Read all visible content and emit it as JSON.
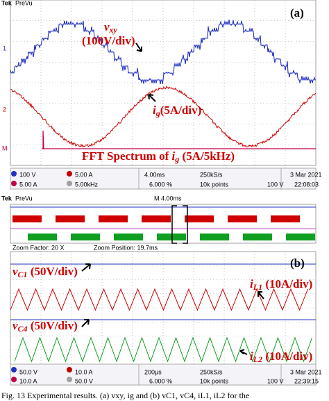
{
  "panel_a": {
    "brand": "Tek",
    "mode": "PreVu",
    "label": "(a)",
    "vxy": {
      "symbol": "v",
      "sub": "xy",
      "scale": "(100V/div)"
    },
    "ig": {
      "symbol": "i",
      "sub": "g",
      "scale": "(5A/div)"
    },
    "fft": {
      "prefix": "FFT Spectrum of ",
      "symbol": "i",
      "sub": "g",
      "scale": " (5A/5kHz)"
    },
    "channels": [
      "1",
      "2",
      "M"
    ],
    "status": {
      "ch1": "100 V",
      "ch2": "5.00 A",
      "math": "5.00 A",
      "math_freq": "5.00kHz",
      "timebase": "4.00ms",
      "rate": "250kS/s",
      "points": "10k points",
      "pos": "6.000 %",
      "trigger": "100 V",
      "date": "3 Mar 2021",
      "time": "22:08:03"
    }
  },
  "panel_b": {
    "brand": "Tek",
    "mode": "PreVu",
    "main_time": "M 4.00ms",
    "label": "(b)",
    "zoom_factor": "Zoom Factor: 20 X",
    "zoom_position": "Zoom Position: 19.7ms",
    "vc1": {
      "symbol": "v",
      "sub": "C1",
      "scale": " (50V/div)"
    },
    "il1": {
      "symbol": "i",
      "sub": "L1",
      "scale": " (10A/div)"
    },
    "vc4": {
      "symbol": "v",
      "sub": "C4",
      "scale": " (50V/div)"
    },
    "il2": {
      "symbol": "i",
      "sub": "L2",
      "scale": " (10A/div)"
    },
    "status": {
      "ch1": "50.0 V",
      "ch2": "10.0 A",
      "ch3": "10.0 A",
      "ch4": "50.0 V",
      "timebase": "200µs",
      "rate": "250kS/s",
      "points": "10k points",
      "pos": "6.000 %",
      "trigger": "100 V",
      "date": "3 Mar 2021",
      "time": "22:39:15"
    }
  },
  "caption": "Fig. 13    Experimental results. (a) vxy, ig and (b) vC1, vC4, iL1, iL2 for the"
}
